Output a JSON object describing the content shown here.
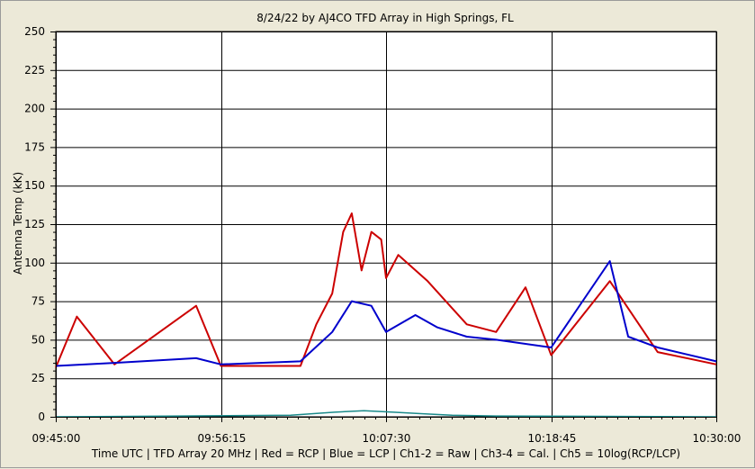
{
  "chart_data": {
    "type": "line",
    "title": "8/24/22  by  AJ4CO TFD Array  in  High Springs, FL",
    "xlabel": "Time UTC | TFD Array 20 MHz | Red = RCP | Blue = LCP | Ch1-2 = Raw | Ch3-4 = Cal. | Ch5 = 10log(RCP/LCP)",
    "ylabel": "Antenna Temp (kK)",
    "x_range": [
      "09:45:00",
      "10:30:00"
    ],
    "x_ticks": [
      "09:45:00",
      "09:56:15",
      "10:07:30",
      "10:18:45",
      "10:30:00"
    ],
    "ylim": [
      0,
      250
    ],
    "y_ticks": [
      "0",
      "25",
      "50",
      "75",
      "100",
      "125",
      "150",
      "175",
      "200",
      "225",
      "250"
    ],
    "grid": true,
    "series": [
      {
        "name": "RCP",
        "color": "#cc0000",
        "x": [
          "09:45:00",
          "09:46:26",
          "09:49:00",
          "09:54:34",
          "09:56:15",
          "10:01:40",
          "10:02:45",
          "10:03:50",
          "10:04:35",
          "10:05:10",
          "10:05:50",
          "10:06:30",
          "10:07:10",
          "10:07:30",
          "10:08:20",
          "10:10:20",
          "10:13:00",
          "10:15:00",
          "10:17:00",
          "10:18:45",
          "10:22:45",
          "10:26:00",
          "10:30:00"
        ],
        "values": [
          32,
          65,
          34,
          72,
          33,
          33,
          60,
          80,
          120,
          132,
          95,
          120,
          115,
          90,
          105,
          88,
          60,
          55,
          84,
          40,
          88,
          42,
          34
        ]
      },
      {
        "name": "LCP",
        "color": "#0000cc",
        "x": [
          "09:45:00",
          "09:49:00",
          "09:54:34",
          "09:56:15",
          "10:01:40",
          "10:03:50",
          "10:05:10",
          "10:06:30",
          "10:07:30",
          "10:09:30",
          "10:11:00",
          "10:13:00",
          "10:15:00",
          "10:18:45",
          "10:22:45",
          "10:24:00",
          "10:26:00",
          "10:30:00"
        ],
        "values": [
          33,
          35,
          38,
          34,
          36,
          55,
          75,
          72,
          55,
          66,
          58,
          52,
          50,
          45,
          101,
          52,
          45,
          36
        ]
      },
      {
        "name": "Ch5",
        "color": "#1a8a8a",
        "x": [
          "09:45:00",
          "10:01:00",
          "10:04:00",
          "10:06:00",
          "10:08:00",
          "10:10:00",
          "10:12:00",
          "10:15:00",
          "10:30:00"
        ],
        "values": [
          0,
          1,
          3,
          4,
          3,
          2,
          1,
          0.5,
          0
        ]
      }
    ]
  }
}
